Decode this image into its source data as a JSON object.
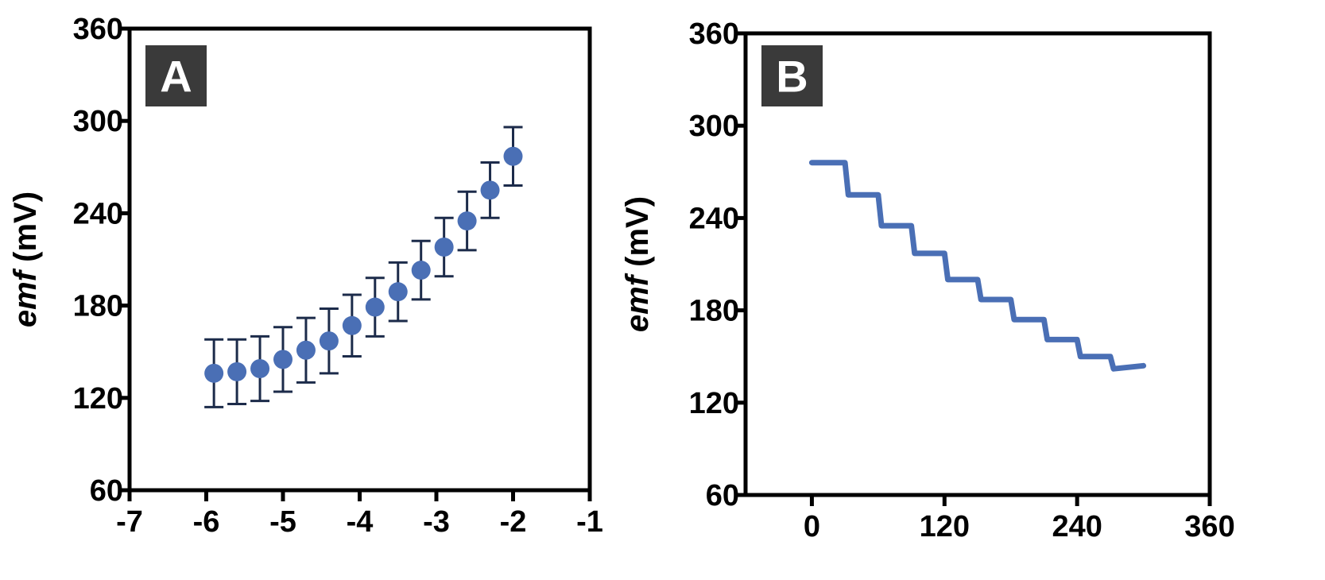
{
  "chart_data": [
    {
      "type": "scatter",
      "panel_label": "A",
      "xlabel": "",
      "ylabel_italic": "emf",
      "ylabel_unit": " (mV)",
      "xlim": [
        -7,
        -1
      ],
      "ylim": [
        60,
        360
      ],
      "xticks": [
        -7,
        -6,
        -5,
        -4,
        -3,
        -2,
        -1
      ],
      "yticks": [
        60,
        120,
        180,
        240,
        300,
        360
      ],
      "error_bars": true,
      "series": [
        {
          "color": "#4a6fb5",
          "error_color": "#1c2b4a",
          "x": [
            -5.9,
            -5.6,
            -5.3,
            -5.0,
            -4.7,
            -4.4,
            -4.1,
            -3.8,
            -3.5,
            -3.2,
            -2.9,
            -2.6,
            -2.3,
            -2.0
          ],
          "y": [
            136,
            137,
            139,
            145,
            151,
            157,
            167,
            179,
            189,
            203,
            218,
            235,
            255,
            277
          ],
          "err": [
            22,
            21,
            21,
            21,
            21,
            21,
            20,
            19,
            19,
            19,
            19,
            19,
            18,
            19
          ]
        }
      ]
    },
    {
      "type": "line",
      "panel_label": "B",
      "xlabel": "",
      "ylabel_italic": "emf",
      "ylabel_unit": " (mV)",
      "xlim": [
        -60,
        360
      ],
      "ylim": [
        60,
        360
      ],
      "xticks": [
        0,
        120,
        240,
        360
      ],
      "yticks": [
        60,
        120,
        180,
        240,
        300,
        360
      ],
      "series": [
        {
          "color": "#4a6fb5",
          "x": [
            0,
            30,
            33,
            60,
            63,
            90,
            93,
            120,
            123,
            150,
            153,
            180,
            183,
            210,
            213,
            240,
            243,
            270,
            273,
            300
          ],
          "y": [
            276,
            276,
            255,
            255,
            235,
            235,
            217,
            217,
            200,
            200,
            187,
            187,
            174,
            174,
            161,
            161,
            150,
            150,
            142,
            144
          ]
        }
      ]
    }
  ]
}
